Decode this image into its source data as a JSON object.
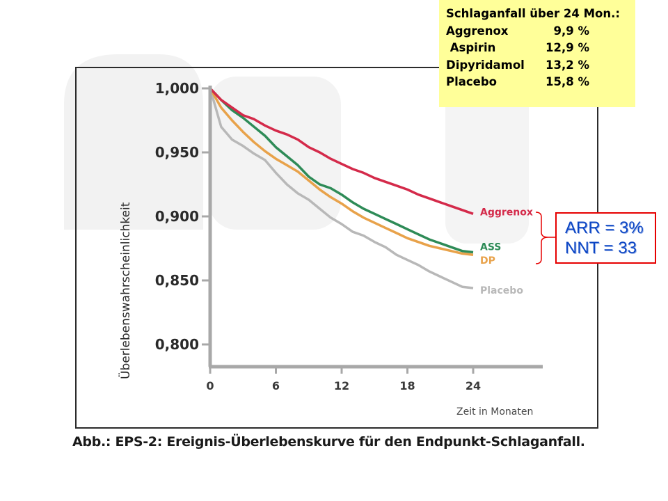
{
  "stats_box": {
    "title": "Schlaganfall über 24 Mon.:",
    "rows": [
      {
        "name": "Aggrenox",
        "value": "9,9 %"
      },
      {
        "name": " Aspirin",
        "value": "12,9 %"
      },
      {
        "name": "Dipyridamol",
        "value": "13,2 %"
      },
      {
        "name": "Placebo",
        "value": "15,8 %"
      }
    ]
  },
  "arr_box": {
    "arr": "ARR = 3%",
    "nnt": "NNT = 33"
  },
  "caption": "Abb.: EPS-2: Ereignis-Überlebenskurve für den Endpunkt-Schlaganfall.",
  "colors": {
    "aggrenox": "#d42a4a",
    "ass": "#2e8b57",
    "dp": "#e8a24a",
    "placebo": "#b8b8b8",
    "axis": "#a8a8a8",
    "highlight": "#ffff99",
    "arr_text": "#0b45c4",
    "arr_border": "#e60000"
  },
  "chart_data": {
    "type": "line",
    "xlabel": "Zeit in Monaten",
    "ylabel": "Überlebenswahrscheinlichkeit",
    "xlim": [
      0,
      24
    ],
    "ylim": [
      0.8,
      1.0
    ],
    "xticks": [
      "0",
      "6",
      "12",
      "18",
      "24"
    ],
    "yticks": [
      "1,000",
      "0,950",
      "0,900",
      "0,850",
      "0,800"
    ],
    "x": [
      0,
      1,
      2,
      3,
      4,
      5,
      6,
      7,
      8,
      9,
      10,
      11,
      12,
      13,
      14,
      15,
      16,
      17,
      18,
      19,
      20,
      21,
      22,
      23,
      24
    ],
    "series": [
      {
        "name": "Aggrenox",
        "color": "#d42a4a",
        "values": [
          1.0,
          0.991,
          0.985,
          0.979,
          0.976,
          0.971,
          0.967,
          0.964,
          0.96,
          0.954,
          0.95,
          0.945,
          0.941,
          0.937,
          0.934,
          0.93,
          0.927,
          0.924,
          0.921,
          0.917,
          0.914,
          0.911,
          0.908,
          0.905,
          0.902
        ]
      },
      {
        "name": "ASS",
        "color": "#2e8b57",
        "values": [
          1.0,
          0.991,
          0.983,
          0.977,
          0.97,
          0.963,
          0.954,
          0.947,
          0.94,
          0.931,
          0.925,
          0.922,
          0.917,
          0.911,
          0.906,
          0.902,
          0.898,
          0.894,
          0.89,
          0.886,
          0.882,
          0.879,
          0.876,
          0.873,
          0.872
        ]
      },
      {
        "name": "DP",
        "color": "#e8a24a",
        "values": [
          1.0,
          0.985,
          0.975,
          0.966,
          0.958,
          0.951,
          0.945,
          0.94,
          0.935,
          0.928,
          0.921,
          0.915,
          0.91,
          0.904,
          0.899,
          0.895,
          0.891,
          0.887,
          0.883,
          0.88,
          0.877,
          0.875,
          0.873,
          0.871,
          0.87
        ]
      },
      {
        "name": "Placebo",
        "color": "#b8b8b8",
        "values": [
          1.0,
          0.97,
          0.96,
          0.955,
          0.949,
          0.944,
          0.934,
          0.925,
          0.918,
          0.913,
          0.906,
          0.899,
          0.894,
          0.888,
          0.885,
          0.88,
          0.876,
          0.87,
          0.866,
          0.862,
          0.857,
          0.853,
          0.849,
          0.845,
          0.844
        ]
      }
    ]
  }
}
